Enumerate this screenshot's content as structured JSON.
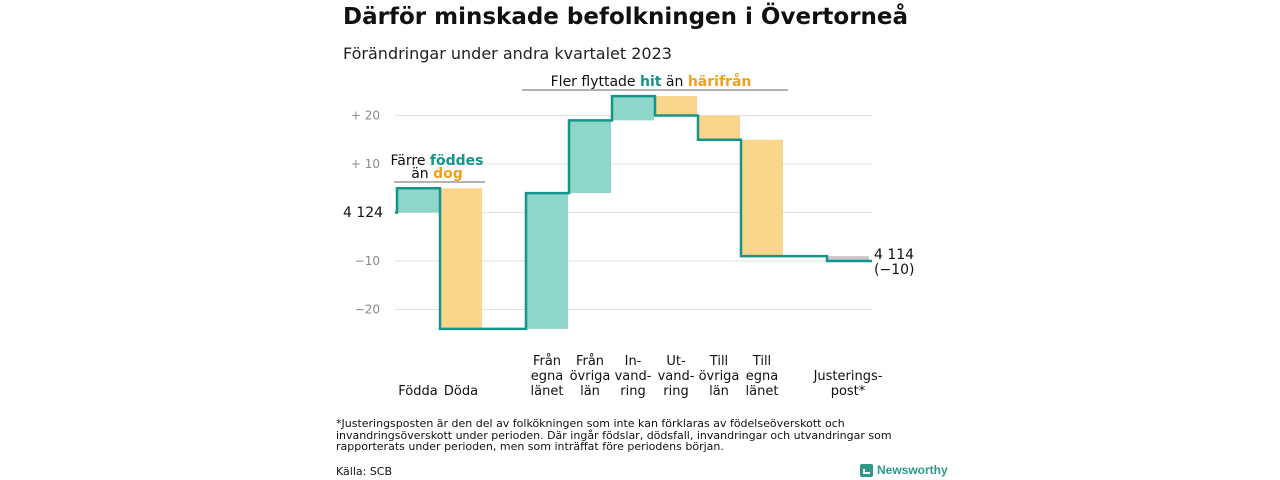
{
  "title": "Därför minskade befolkningen i Övertorneå",
  "subtitle": "Förändringar under andra kvartalet 2023",
  "annotations": {
    "births_group": {
      "line1_pre": "Färre ",
      "line1_hl": "föddes",
      "line2_pre": "än ",
      "line2_hl": "dog"
    },
    "migration_group": {
      "pre": "Fler flyttade ",
      "hl1": "hit",
      "mid": " än ",
      "hl2": "härifrån"
    }
  },
  "start_label": "4 124",
  "end_label": {
    "value": "4 114",
    "change": "(−10)"
  },
  "footnote": "*Justeringsposten är den del av folkökningen som inte kan förklaras av födelseöverskott och invandringsöverskott under perioden. Där ingår födslar, dödsfall, invandringar och utvandringar som rapporterats under perioden, men som inträffat före periodens början.",
  "source": "Källa: SCB",
  "brand": "Newsworthy",
  "colors": {
    "increase": "#8dd6c9",
    "decrease": "#fad58c",
    "adjustment": "#c8c8c8",
    "line": "#14948a",
    "grid": "#e0e0e0"
  },
  "chart_data": {
    "type": "waterfall",
    "start_value": 4124,
    "end_value": 4114,
    "total_change": -10,
    "yticks": [
      "−20",
      "−10",
      "",
      "+ 10",
      "+ 20"
    ],
    "tick_values": [
      -20,
      -10,
      0,
      10,
      20
    ],
    "ylim": [
      -24,
      28
    ],
    "steps": [
      {
        "label": [
          "Födda"
        ],
        "change": 5
      },
      {
        "label": [
          "Döda"
        ],
        "change": -29
      },
      {
        "label": [
          "Från",
          "egna",
          "länet"
        ],
        "change": 28
      },
      {
        "label": [
          "Från",
          "övriga",
          "län"
        ],
        "change": 15
      },
      {
        "label": [
          "In-",
          "vand-",
          "ring"
        ],
        "change": 5
      },
      {
        "label": [
          "Ut-",
          "vand-",
          "ring"
        ],
        "change": -4
      },
      {
        "label": [
          "Till",
          "övriga",
          "län"
        ],
        "change": -5
      },
      {
        "label": [
          "Till",
          "egna",
          "länet"
        ],
        "change": -24
      },
      {
        "label": [
          "Justerings-",
          "post*"
        ],
        "change": -1
      }
    ]
  }
}
